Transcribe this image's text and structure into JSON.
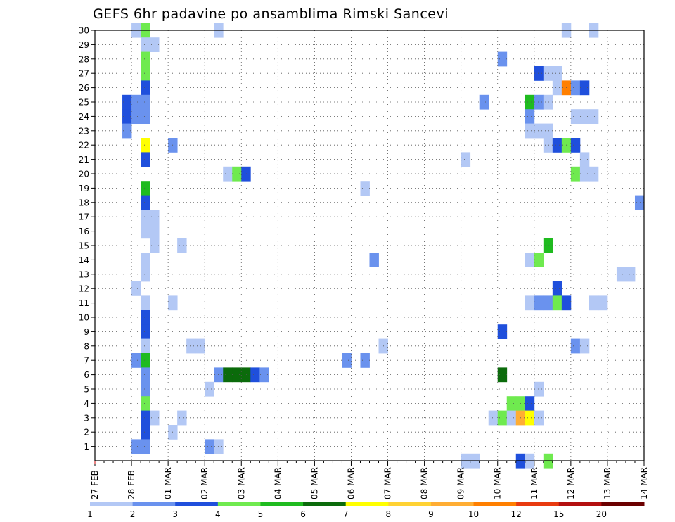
{
  "chart_data": {
    "type": "heatmap",
    "title": "GEFS 6hr padavine po ansamblima Rimski Sancevi",
    "xlabel": "",
    "ylabel": "",
    "x_tick_labels": [
      "27 FEB",
      "28 FEB",
      "01 MAR",
      "02 MAR",
      "03 MAR",
      "04 MAR",
      "05 MAR",
      "06 MAR",
      "07 MAR",
      "08 MAR",
      "09 MAR",
      "10 MAR",
      "11 MAR",
      "12 MAR",
      "13 MAR",
      "14 MAR"
    ],
    "x_unit": "6-hour step (4 per day)",
    "xlim": [
      0,
      60
    ],
    "y_tick_labels": [
      "1",
      "2",
      "3",
      "4",
      "5",
      "6",
      "7",
      "8",
      "9",
      "10",
      "11",
      "12",
      "13",
      "14",
      "15",
      "16",
      "17",
      "18",
      "19",
      "20",
      "21",
      "22",
      "23",
      "24",
      "25",
      "26",
      "27",
      "28",
      "29",
      "30"
    ],
    "ylim": [
      0,
      30
    ],
    "grid": true,
    "colorbar": {
      "labels": [
        "1",
        "2",
        "3",
        "4",
        "5",
        "6",
        "7",
        "8",
        "9",
        "10",
        "12",
        "15",
        "20"
      ],
      "colors": [
        "#b3c8f5",
        "#6a92ee",
        "#1f4fdc",
        "#6fea4f",
        "#1fbb1f",
        "#0b6b0b",
        "#ffff00",
        "#ffd233",
        "#ffad33",
        "#ff7f00",
        "#e83a10",
        "#b31010",
        "#6b0000"
      ]
    },
    "cells": [
      [
        4,
        30,
        1
      ],
      [
        5,
        30,
        4
      ],
      [
        13,
        30,
        1
      ],
      [
        51,
        30,
        1
      ],
      [
        54,
        30,
        1
      ],
      [
        5,
        29,
        1
      ],
      [
        6,
        29,
        1
      ],
      [
        5,
        28,
        4
      ],
      [
        44,
        28,
        2
      ],
      [
        5,
        27,
        4
      ],
      [
        48,
        27,
        3
      ],
      [
        49,
        27,
        1
      ],
      [
        50,
        27,
        1
      ],
      [
        5,
        26,
        3
      ],
      [
        50,
        26,
        1
      ],
      [
        51,
        26,
        10
      ],
      [
        52,
        26,
        2
      ],
      [
        53,
        26,
        3
      ],
      [
        3,
        25,
        3
      ],
      [
        4,
        25,
        2
      ],
      [
        5,
        25,
        2
      ],
      [
        42,
        25,
        2
      ],
      [
        47,
        25,
        5
      ],
      [
        48,
        25,
        2
      ],
      [
        49,
        25,
        1
      ],
      [
        3,
        24,
        3
      ],
      [
        4,
        24,
        2
      ],
      [
        5,
        24,
        2
      ],
      [
        47,
        24,
        2
      ],
      [
        52,
        24,
        1
      ],
      [
        53,
        24,
        1
      ],
      [
        54,
        24,
        1
      ],
      [
        3,
        23,
        2
      ],
      [
        47,
        23,
        1
      ],
      [
        48,
        23,
        1
      ],
      [
        49,
        23,
        1
      ],
      [
        5,
        22,
        7
      ],
      [
        8,
        22,
        2
      ],
      [
        49,
        22,
        1
      ],
      [
        50,
        22,
        3
      ],
      [
        51,
        22,
        4
      ],
      [
        52,
        22,
        3
      ],
      [
        5,
        21,
        3
      ],
      [
        40,
        21,
        1
      ],
      [
        53,
        21,
        1
      ],
      [
        14,
        20,
        1
      ],
      [
        15,
        20,
        4
      ],
      [
        16,
        20,
        3
      ],
      [
        52,
        20,
        4
      ],
      [
        53,
        20,
        1
      ],
      [
        54,
        20,
        1
      ],
      [
        5,
        19,
        5
      ],
      [
        29,
        19,
        1
      ],
      [
        5,
        18,
        3
      ],
      [
        59,
        18,
        2
      ],
      [
        5,
        17,
        1
      ],
      [
        6,
        17,
        1
      ],
      [
        5,
        16,
        1
      ],
      [
        6,
        16,
        1
      ],
      [
        6,
        15,
        1
      ],
      [
        9,
        15,
        1
      ],
      [
        49,
        15,
        5
      ],
      [
        5,
        14,
        1
      ],
      [
        30,
        14,
        2
      ],
      [
        47,
        14,
        1
      ],
      [
        48,
        14,
        4
      ],
      [
        5,
        13,
        1
      ],
      [
        57,
        13,
        1
      ],
      [
        58,
        13,
        1
      ],
      [
        4,
        12,
        1
      ],
      [
        50,
        12,
        3
      ],
      [
        5,
        11,
        1
      ],
      [
        8,
        11,
        1
      ],
      [
        47,
        11,
        1
      ],
      [
        48,
        11,
        2
      ],
      [
        49,
        11,
        2
      ],
      [
        50,
        11,
        4
      ],
      [
        51,
        11,
        3
      ],
      [
        54,
        11,
        1
      ],
      [
        55,
        11,
        1
      ],
      [
        5,
        10,
        3
      ],
      [
        5,
        9,
        3
      ],
      [
        44,
        9,
        3
      ],
      [
        5,
        8,
        1
      ],
      [
        10,
        8,
        1
      ],
      [
        11,
        8,
        1
      ],
      [
        31,
        8,
        1
      ],
      [
        52,
        8,
        2
      ],
      [
        53,
        8,
        1
      ],
      [
        4,
        7,
        2
      ],
      [
        5,
        7,
        5
      ],
      [
        27,
        7,
        2
      ],
      [
        29,
        7,
        2
      ],
      [
        5,
        6,
        2
      ],
      [
        13,
        6,
        2
      ],
      [
        14,
        6,
        6
      ],
      [
        15,
        6,
        6
      ],
      [
        16,
        6,
        6
      ],
      [
        17,
        6,
        3
      ],
      [
        18,
        6,
        2
      ],
      [
        44,
        6,
        6
      ],
      [
        5,
        5,
        2
      ],
      [
        12,
        5,
        1
      ],
      [
        48,
        5,
        1
      ],
      [
        5,
        4,
        4
      ],
      [
        45,
        4,
        4
      ],
      [
        46,
        4,
        4
      ],
      [
        47,
        4,
        3
      ],
      [
        5,
        3,
        3
      ],
      [
        6,
        3,
        1
      ],
      [
        9,
        3,
        1
      ],
      [
        43,
        3,
        1
      ],
      [
        44,
        3,
        4
      ],
      [
        45,
        3,
        1
      ],
      [
        46,
        3,
        9
      ],
      [
        47,
        3,
        7
      ],
      [
        48,
        3,
        1
      ],
      [
        5,
        2,
        3
      ],
      [
        8,
        2,
        1
      ],
      [
        4,
        1,
        2
      ],
      [
        5,
        1,
        2
      ],
      [
        12,
        1,
        2
      ],
      [
        13,
        1,
        1
      ],
      [
        40,
        0,
        1
      ],
      [
        41,
        0,
        1
      ],
      [
        46,
        0,
        3
      ],
      [
        47,
        0,
        1
      ],
      [
        49,
        0,
        4
      ]
    ]
  }
}
